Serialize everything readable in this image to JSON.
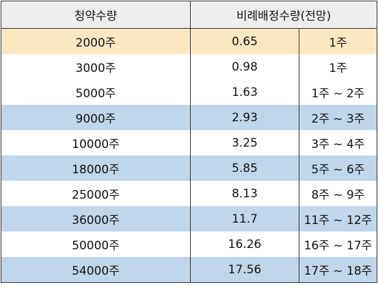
{
  "header": {
    "col1": "청약수량",
    "col2": "비례배정수량(전망)"
  },
  "rows": [
    {
      "qty": "2000주",
      "ratio": "0.65",
      "expected": "1주",
      "bg": "yellow"
    },
    {
      "qty": "3000주",
      "ratio": "0.98",
      "expected": "1주",
      "bg": "white"
    },
    {
      "qty": "5000주",
      "ratio": "1.63",
      "expected": "1주 ~ 2주",
      "bg": "white"
    },
    {
      "qty": "9000주",
      "ratio": "2.93",
      "expected": "2주 ~ 3주",
      "bg": "blue"
    },
    {
      "qty": "10000주",
      "ratio": "3.25",
      "expected": "3주 ~ 4주",
      "bg": "white"
    },
    {
      "qty": "18000주",
      "ratio": "5.85",
      "expected": "5주 ~ 6주",
      "bg": "blue"
    },
    {
      "qty": "25000주",
      "ratio": "8.13",
      "expected": "8주 ~ 9주",
      "bg": "white"
    },
    {
      "qty": "36000주",
      "ratio": "11.7",
      "expected": "11주 ~ 12주",
      "bg": "blue"
    },
    {
      "qty": "50000주",
      "ratio": "16.26",
      "expected": "16주 ~ 17주",
      "bg": "white"
    },
    {
      "qty": "54000주",
      "ratio": "17.56",
      "expected": "17주 ~ 18주",
      "bg": "blue"
    }
  ],
  "colors": {
    "yellow": "#fbe8c2",
    "blue": "#c0d6ea",
    "white": "#ffffff",
    "header": "#eeeeee",
    "border": "#2f2f2f"
  }
}
